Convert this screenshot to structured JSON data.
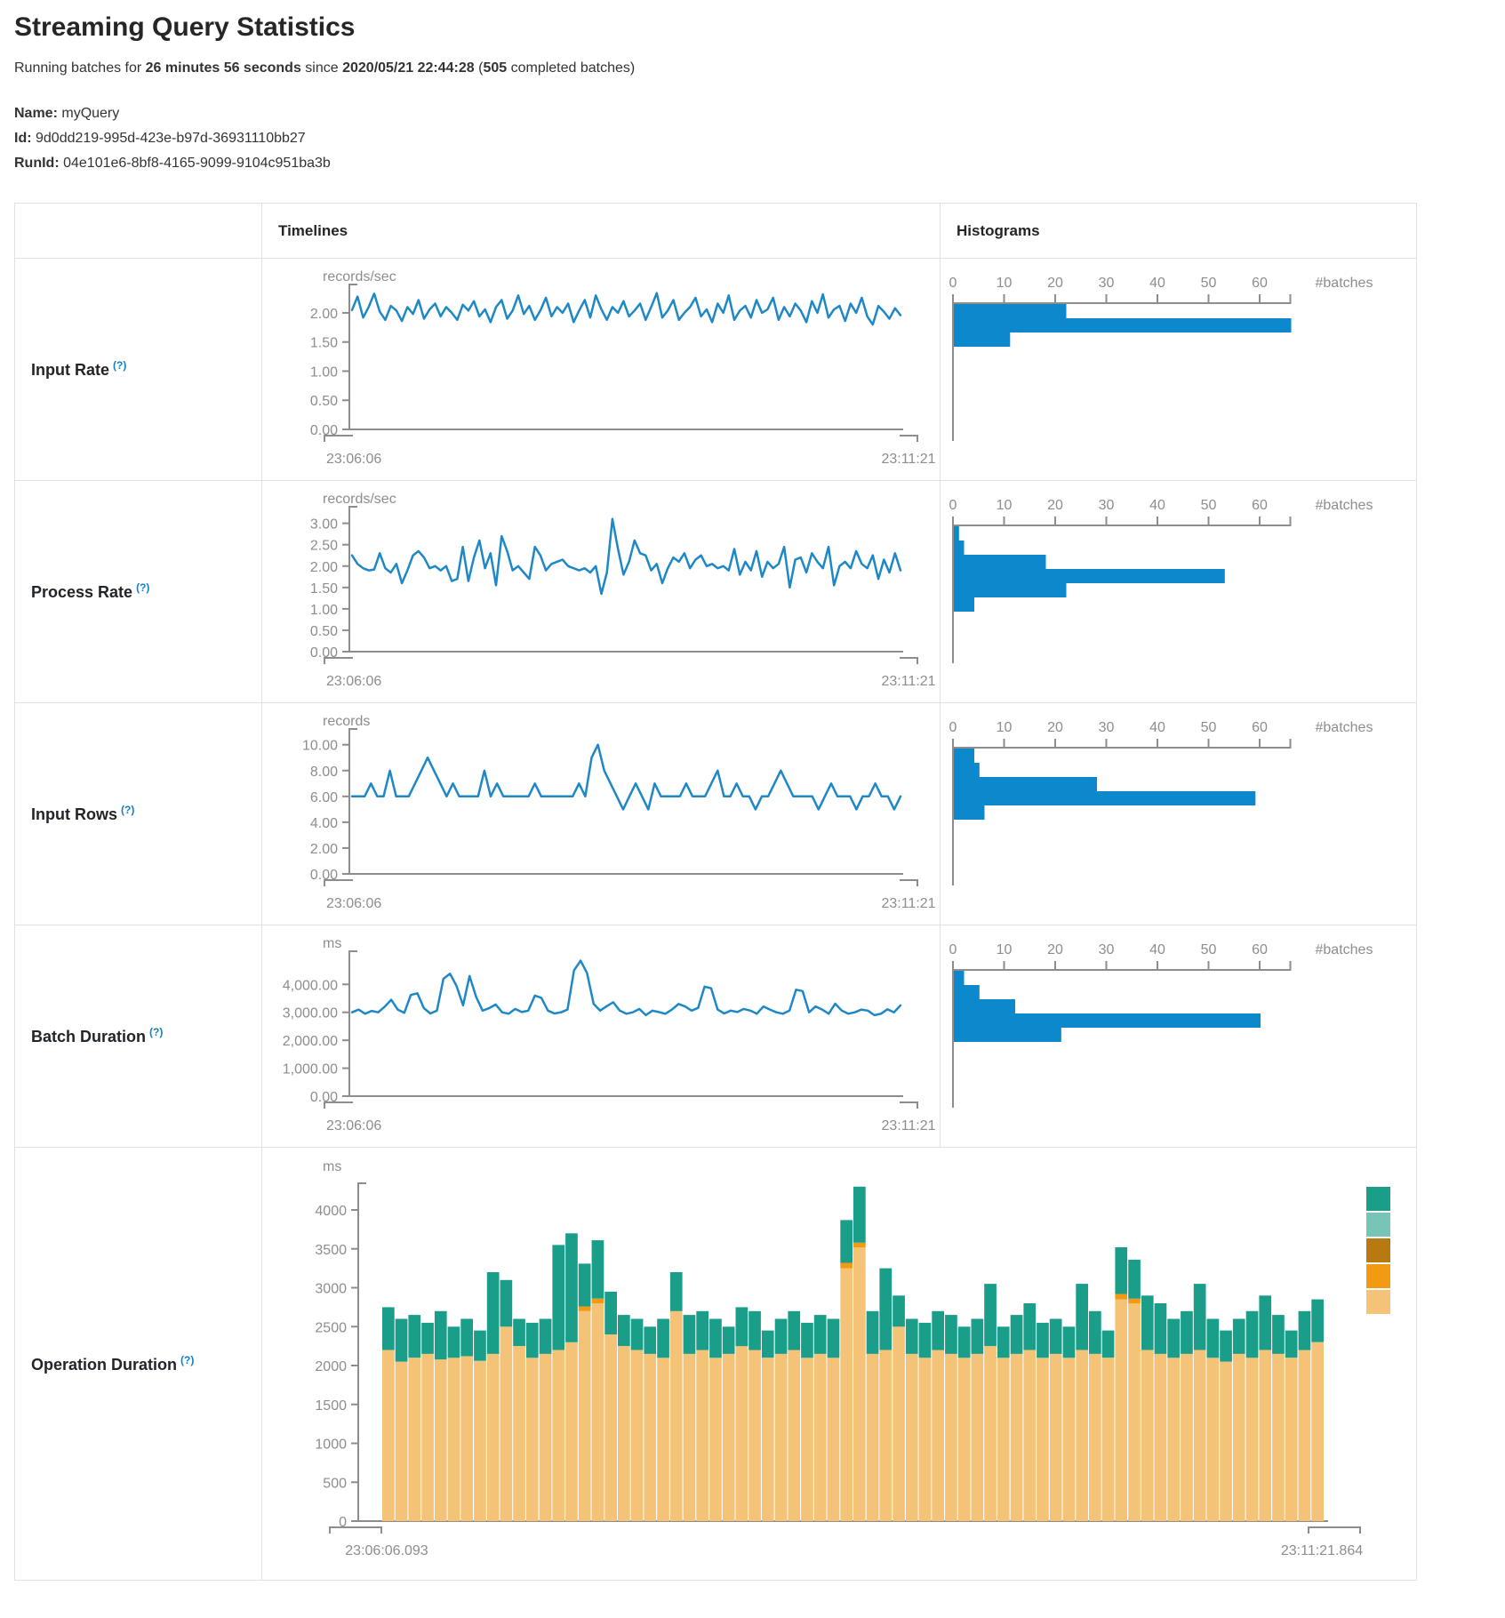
{
  "page": {
    "title": "Streaming Query Statistics",
    "subtitle": {
      "prefix": "Running batches for ",
      "duration": "26 minutes 56 seconds",
      "since_word": " since ",
      "timestamp": "2020/05/21 22:44:28",
      "open_paren": " (",
      "completed_count": "505",
      "suffix": " completed batches)"
    },
    "name_label": "Name:",
    "name_value": "myQuery",
    "id_label": "Id:",
    "id_value": "9d0dd219-995d-423e-b97d-36931110bb27",
    "runid_label": "RunId:",
    "runid_value": "04e101e6-8bf8-4165-9099-9104c951ba3b",
    "help_marker": "(?)"
  },
  "table": {
    "col_timelines": "Timelines",
    "col_histograms": "Histograms"
  },
  "colors": {
    "timeline_line": "#1e88c7",
    "histogram_bar": "#0b89cc",
    "axis_gray": "#8d8d8d",
    "help_blue": "#1480c3",
    "legend": [
      "#1a9e8a",
      "#76c5b6",
      "#b87a10",
      "#f29a11",
      "#f5c378"
    ]
  },
  "chart_data": [
    {
      "row_label": "Input Rate",
      "timeline": {
        "type": "line",
        "unit": "records/sec",
        "x_start": "23:06:06",
        "x_end": "23:11:21",
        "ymax": 2.35,
        "y_ticks": [
          {
            "v": 2,
            "t": "2.00"
          },
          {
            "v": 1.5,
            "t": "1.50"
          },
          {
            "v": 1,
            "t": "1.00"
          },
          {
            "v": 0.5,
            "t": "0.50"
          },
          {
            "v": 0,
            "t": "0.00"
          }
        ],
        "values": [
          2.05,
          2.28,
          1.92,
          2.1,
          2.33,
          2.02,
          1.88,
          2.12,
          2.04,
          1.86,
          2.1,
          1.98,
          2.22,
          1.9,
          2.06,
          2.16,
          1.94,
          2.1,
          2.0,
          1.88,
          2.14,
          2.04,
          2.2,
          1.94,
          2.06,
          1.84,
          2.1,
          2.22,
          1.9,
          2.04,
          2.3,
          1.98,
          2.12,
          1.88,
          2.04,
          2.26,
          1.94,
          2.1,
          2.0,
          2.16,
          1.84,
          2.04,
          2.22,
          1.92,
          2.3,
          2.06,
          1.88,
          2.1,
          2.0,
          2.2,
          1.94,
          2.04,
          2.16,
          1.88,
          2.1,
          2.34,
          1.92,
          2.04,
          2.22,
          1.88,
          2.0,
          2.1,
          2.26,
          1.94,
          2.06,
          1.84,
          2.16,
          2.0,
          2.3,
          1.88,
          2.04,
          2.12,
          1.92,
          2.22,
          2.0,
          2.06,
          2.26,
          1.88,
          2.1,
          1.94,
          2.16,
          2.04,
          1.84,
          2.2,
          2.0,
          2.32,
          1.92,
          2.06,
          2.12,
          1.86,
          2.16,
          2.0,
          2.26,
          1.94,
          1.8,
          2.12,
          2.02,
          1.9,
          2.08,
          1.96
        ]
      },
      "histogram": {
        "type": "bar",
        "unit": "#batches",
        "x_ticks": [
          0,
          10,
          20,
          30,
          40,
          50,
          60
        ],
        "axis_max": 66,
        "bars": [
          22,
          66,
          11
        ]
      }
    },
    {
      "row_label": "Process Rate",
      "timeline": {
        "type": "line",
        "unit": "records/sec",
        "x_start": "23:06:06",
        "x_end": "23:11:21",
        "ymax": 3.2,
        "y_ticks": [
          {
            "v": 3,
            "t": "3.00"
          },
          {
            "v": 2.5,
            "t": "2.50"
          },
          {
            "v": 2,
            "t": "2.00"
          },
          {
            "v": 1.5,
            "t": "1.50"
          },
          {
            "v": 1,
            "t": "1.00"
          },
          {
            "v": 0.5,
            "t": "0.50"
          },
          {
            "v": 0,
            "t": "0.00"
          }
        ],
        "values": [
          2.25,
          2.05,
          1.95,
          1.9,
          1.92,
          2.3,
          1.95,
          1.85,
          2.05,
          1.6,
          1.9,
          2.25,
          2.35,
          2.2,
          1.95,
          2.0,
          1.9,
          2.0,
          1.65,
          1.7,
          2.45,
          1.65,
          2.2,
          2.6,
          1.95,
          2.3,
          1.55,
          2.7,
          2.35,
          1.9,
          2.0,
          1.85,
          1.7,
          2.45,
          2.25,
          1.9,
          2.05,
          2.1,
          2.15,
          2.0,
          1.95,
          1.9,
          1.95,
          1.85,
          2.0,
          1.35,
          1.85,
          3.1,
          2.4,
          1.8,
          2.1,
          2.6,
          2.3,
          2.25,
          1.9,
          2.05,
          1.6,
          1.95,
          2.2,
          2.1,
          2.3,
          1.95,
          2.15,
          2.25,
          2.0,
          2.05,
          1.95,
          2.0,
          1.9,
          2.4,
          1.8,
          2.1,
          1.9,
          2.35,
          1.75,
          2.1,
          1.95,
          2.05,
          2.45,
          1.5,
          2.15,
          2.2,
          1.85,
          2.3,
          2.1,
          1.95,
          2.45,
          1.55,
          2.0,
          2.1,
          1.95,
          2.35,
          2.05,
          1.95,
          2.25,
          1.7,
          2.15,
          1.85,
          2.3,
          1.9
        ]
      },
      "histogram": {
        "type": "bar",
        "unit": "#batches",
        "x_ticks": [
          0,
          10,
          20,
          30,
          40,
          50,
          60
        ],
        "axis_max": 66,
        "bars": [
          1,
          2,
          18,
          53,
          22,
          4
        ]
      }
    },
    {
      "row_label": "Input Rows",
      "timeline": {
        "type": "line",
        "unit": "records",
        "x_start": "23:06:06",
        "x_end": "23:11:21",
        "ymax": 10.6,
        "y_ticks": [
          {
            "v": 10,
            "t": "10.00"
          },
          {
            "v": 8,
            "t": "8.00"
          },
          {
            "v": 6,
            "t": "6.00"
          },
          {
            "v": 4,
            "t": "4.00"
          },
          {
            "v": 2,
            "t": "2.00"
          },
          {
            "v": 0,
            "t": "0.00"
          }
        ],
        "values": [
          6,
          6,
          6,
          7,
          6,
          6,
          8,
          6,
          6,
          6,
          7,
          8,
          9,
          8,
          7,
          6,
          7,
          6,
          6,
          6,
          6,
          8,
          6,
          7,
          6,
          6,
          6,
          6,
          6,
          7,
          6,
          6,
          6,
          6,
          6,
          6,
          7,
          6,
          9,
          10,
          8,
          7,
          6,
          5,
          6,
          7,
          6,
          5,
          7,
          6,
          6,
          6,
          6,
          7,
          6,
          6,
          6,
          7,
          8,
          6,
          6,
          7,
          6,
          6,
          5,
          6,
          6,
          7,
          8,
          7,
          6,
          6,
          6,
          6,
          5,
          6,
          7,
          6,
          6,
          6,
          5,
          6,
          6,
          7,
          6,
          6,
          5,
          6
        ]
      },
      "histogram": {
        "type": "bar",
        "unit": "#batches",
        "x_ticks": [
          0,
          10,
          20,
          30,
          40,
          50,
          60
        ],
        "axis_max": 66,
        "bars": [
          4,
          5,
          28,
          59,
          6
        ]
      }
    },
    {
      "row_label": "Batch Duration",
      "timeline": {
        "type": "line",
        "unit": "ms",
        "x_start": "23:06:06",
        "x_end": "23:11:21",
        "ymax": 4900,
        "y_ticks": [
          {
            "v": 4000,
            "t": "4,000.00"
          },
          {
            "v": 3000,
            "t": "3,000.00"
          },
          {
            "v": 2000,
            "t": "2,000.00"
          },
          {
            "v": 1000,
            "t": "1,000.00"
          },
          {
            "v": 0,
            "t": "0.00"
          }
        ],
        "values": [
          3000,
          3100,
          2950,
          3050,
          3000,
          3200,
          3450,
          3100,
          2980,
          3620,
          3680,
          3150,
          2960,
          3060,
          4200,
          4380,
          3950,
          3250,
          4300,
          3550,
          3060,
          3150,
          3280,
          3000,
          2950,
          3120,
          3010,
          3060,
          3600,
          3520,
          3060,
          2960,
          3000,
          3100,
          4500,
          4850,
          4400,
          3300,
          3060,
          3220,
          3360,
          3060,
          2950,
          3000,
          3120,
          2900,
          3060,
          3010,
          2950,
          3100,
          3300,
          3210,
          3060,
          3160,
          3920,
          3860,
          3100,
          2960,
          3060,
          3010,
          3120,
          3060,
          2950,
          3210,
          3100,
          3000,
          2950,
          3060,
          3810,
          3760,
          3000,
          3210,
          3100,
          2950,
          3310,
          3060,
          2950,
          3000,
          3100,
          3060,
          2900,
          2950,
          3110,
          3000,
          3250
        ]
      },
      "histogram": {
        "type": "bar",
        "unit": "#batches",
        "x_ticks": [
          0,
          10,
          20,
          30,
          40,
          50,
          60
        ],
        "axis_max": 66,
        "bars": [
          2,
          5,
          12,
          60,
          21
        ]
      }
    },
    {
      "row_label": "Operation Duration",
      "timeline": {
        "type": "stacked-bar",
        "unit": "ms",
        "x_start": "23:06:06.093",
        "x_end": "23:11:21.864",
        "y_scale_max": 4000,
        "y_ticks": [
          {
            "v": 4000,
            "t": "4000"
          },
          {
            "v": 3500,
            "t": "3500"
          },
          {
            "v": 3000,
            "t": "3000"
          },
          {
            "v": 2500,
            "t": "2500"
          },
          {
            "v": 2000,
            "t": "2000"
          },
          {
            "v": 1500,
            "t": "1500"
          },
          {
            "v": 1000,
            "t": "1000"
          },
          {
            "v": 500,
            "t": "500"
          },
          {
            "v": 0,
            "t": "0"
          }
        ],
        "legend_colors": [
          "#1a9e8a",
          "#76c5b6",
          "#b87a10",
          "#f29a11",
          "#f5c378"
        ],
        "series": [
          {
            "name": "tan",
            "color": "#f5c378",
            "values": [
              2200,
              2050,
              2100,
              2150,
              2080,
              2100,
              2120,
              2060,
              2150,
              2500,
              2250,
              2100,
              2150,
              2200,
              2300,
              2700,
              2800,
              2400,
              2250,
              2200,
              2150,
              2100,
              2700,
              2150,
              2200,
              2100,
              2150,
              2250,
              2200,
              2100,
              2150,
              2200,
              2100,
              2150,
              2100,
              3250,
              3520,
              2150,
              2200,
              2500,
              2150,
              2100,
              2200,
              2150,
              2100,
              2150,
              2250,
              2100,
              2150,
              2200,
              2100,
              2150,
              2100,
              2200,
              2150,
              2100,
              2850,
              2800,
              2200,
              2150,
              2100,
              2150,
              2200,
              2100,
              2050,
              2150,
              2100,
              2200,
              2150,
              2100,
              2200,
              2300
            ]
          },
          {
            "name": "orange",
            "color": "#f29a11",
            "values": [
              0,
              0,
              0,
              0,
              0,
              0,
              0,
              0,
              0,
              0,
              0,
              0,
              0,
              0,
              0,
              60,
              60,
              0,
              0,
              0,
              0,
              0,
              0,
              0,
              0,
              0,
              0,
              0,
              0,
              0,
              0,
              0,
              0,
              0,
              0,
              70,
              60,
              0,
              0,
              0,
              0,
              0,
              0,
              0,
              0,
              0,
              0,
              0,
              0,
              0,
              0,
              0,
              0,
              0,
              0,
              0,
              70,
              60,
              0,
              0,
              0,
              0,
              0,
              0,
              0,
              0,
              0,
              0,
              0,
              0,
              0,
              0
            ]
          },
          {
            "name": "teal",
            "color": "#1a9e8a",
            "values": [
              550,
              550,
              550,
              400,
              620,
              400,
              480,
              390,
              1050,
              600,
              350,
              450,
              450,
              1350,
              1400,
              550,
              750,
              550,
              400,
              400,
              350,
              500,
              500,
              500,
              500,
              500,
              350,
              500,
              500,
              350,
              450,
              500,
              450,
              500,
              500,
              550,
              720,
              550,
              1050,
              400,
              450,
              450,
              500,
              500,
              400,
              450,
              800,
              400,
              500,
              600,
              450,
              450,
              400,
              850,
              550,
              350,
              600,
              500,
              700,
              650,
              500,
              550,
              850,
              500,
              400,
              450,
              600,
              700,
              500,
              350,
              500,
              550
            ]
          }
        ]
      },
      "histogram": null
    }
  ]
}
